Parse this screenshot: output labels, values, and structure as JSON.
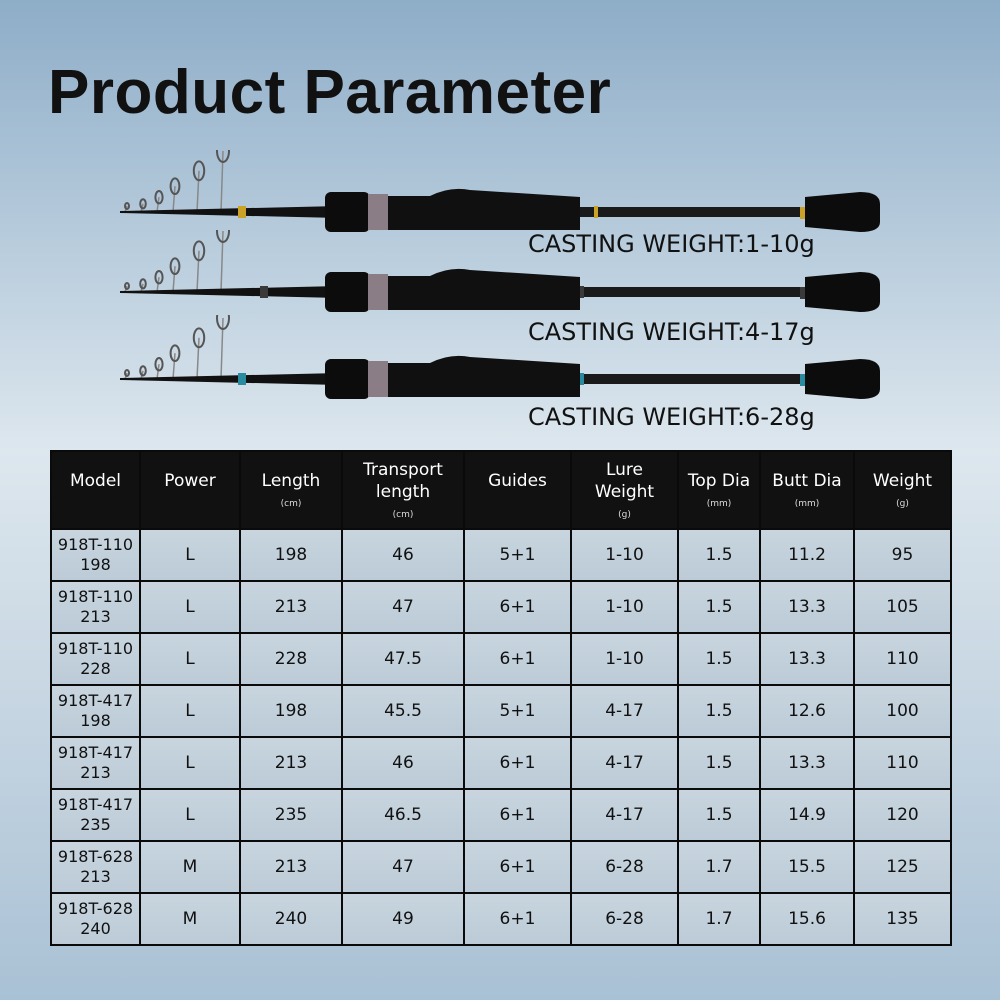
{
  "title": "Product Parameter",
  "rods": [
    {
      "casting_weight": "CASTING WEIGHT:1-10g",
      "accent_color": "#c9a227"
    },
    {
      "casting_weight": "CASTING WEIGHT:4-17g",
      "accent_color": "#3a3a3a"
    },
    {
      "casting_weight": "CASTING WEIGHT:6-28g",
      "accent_color": "#2a8aa0"
    }
  ],
  "table": {
    "headers": [
      {
        "label": "Model",
        "unit": ""
      },
      {
        "label": "Power",
        "unit": ""
      },
      {
        "label": "Length",
        "unit": "(cm)"
      },
      {
        "label": "Transport length",
        "unit": "(cm)"
      },
      {
        "label": "Guides",
        "unit": ""
      },
      {
        "label": "Lure Weight",
        "unit": "(g)"
      },
      {
        "label": "Top Dia",
        "unit": "(mm)"
      },
      {
        "label": "Butt Dia",
        "unit": "(mm)"
      },
      {
        "label": "Weight",
        "unit": "(g)"
      }
    ],
    "rows": [
      [
        "918T-110 198",
        "L",
        "198",
        "46",
        "5+1",
        "1-10",
        "1.5",
        "11.2",
        "95"
      ],
      [
        "918T-110 213",
        "L",
        "213",
        "47",
        "6+1",
        "1-10",
        "1.5",
        "13.3",
        "105"
      ],
      [
        "918T-110 228",
        "L",
        "228",
        "47.5",
        "6+1",
        "1-10",
        "1.5",
        "13.3",
        "110"
      ],
      [
        "918T-417 198",
        "L",
        "198",
        "45.5",
        "5+1",
        "4-17",
        "1.5",
        "12.6",
        "100"
      ],
      [
        "918T-417 213",
        "L",
        "213",
        "46",
        "6+1",
        "4-17",
        "1.5",
        "13.3",
        "110"
      ],
      [
        "918T-417 235",
        "L",
        "235",
        "46.5",
        "6+1",
        "4-17",
        "1.5",
        "14.9",
        "120"
      ],
      [
        "918T-628 213",
        "M",
        "213",
        "47",
        "6+1",
        "6-28",
        "1.7",
        "15.5",
        "125"
      ],
      [
        "918T-628 240",
        "M",
        "240",
        "49",
        "6+1",
        "6-28",
        "1.7",
        "15.6",
        "135"
      ]
    ]
  }
}
